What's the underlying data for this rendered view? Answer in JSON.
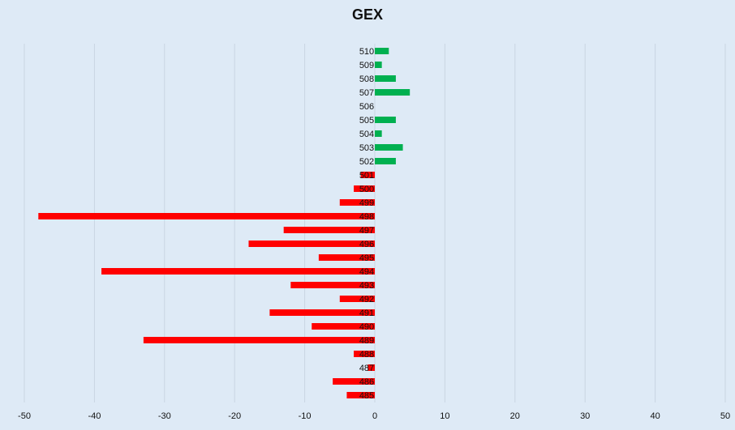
{
  "chart_data": {
    "type": "bar",
    "orientation": "horizontal",
    "title": "GEX",
    "xlabel": "",
    "ylabel": "",
    "xlim": [
      -50,
      50
    ],
    "xticks": [
      -50,
      -40,
      -30,
      -20,
      -10,
      0,
      10,
      20,
      30,
      40,
      50
    ],
    "grid": "vertical",
    "legend": "none",
    "colors": {
      "positive": "#00b050",
      "negative": "#ff0000",
      "background": "#deeaf6",
      "grid": "#c9d5e2"
    },
    "categories": [
      "510",
      "509",
      "508",
      "507",
      "506",
      "505",
      "504",
      "503",
      "502",
      "501",
      "500",
      "499",
      "498",
      "497",
      "496",
      "495",
      "494",
      "493",
      "492",
      "491",
      "490",
      "489",
      "488",
      "487",
      "486",
      "485"
    ],
    "values": [
      2,
      1,
      3,
      5,
      0,
      3,
      1,
      4,
      3,
      -2,
      -3,
      -5,
      -48,
      -13,
      -18,
      -8,
      -39,
      -12,
      -5,
      -15,
      -9,
      -33,
      -3,
      -1,
      -6,
      -4
    ]
  }
}
